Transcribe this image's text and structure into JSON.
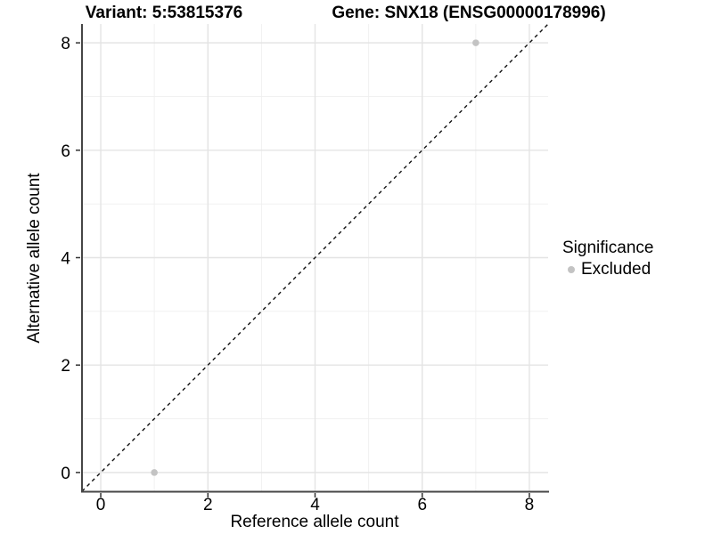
{
  "chart_data": {
    "type": "scatter",
    "titles": {
      "variant": "Variant: 5:53815376",
      "gene": "Gene: SNX18 (ENSG00000178996)"
    },
    "xlabel": "Reference allele count",
    "ylabel": "Alternative allele count",
    "xlim": [
      -0.35,
      8.35
    ],
    "ylim": [
      -0.35,
      8.35
    ],
    "major_ticks": [
      0,
      2,
      4,
      6,
      8
    ],
    "minor_ticks": [
      1,
      3,
      5,
      7
    ],
    "grid": true,
    "identity_line": {
      "slope": 1,
      "intercept": 0,
      "style": "dashed"
    },
    "points": [
      {
        "x": 1,
        "y": 0,
        "significance": "Excluded"
      },
      {
        "x": 7,
        "y": 8,
        "significance": "Excluded"
      }
    ],
    "legend": {
      "title": "Significance",
      "position": "right",
      "entries": [
        {
          "label": "Excluded",
          "color": "#c3c3c3"
        }
      ]
    },
    "colors": {
      "background": "#ffffff",
      "text": "#000000",
      "axis_line": "#464646",
      "tick_mark": "#333333",
      "grid_major": "#e4e4e4",
      "grid_minor": "#efefef",
      "point": "#c3c3c3",
      "identity_line": "#111111"
    }
  }
}
